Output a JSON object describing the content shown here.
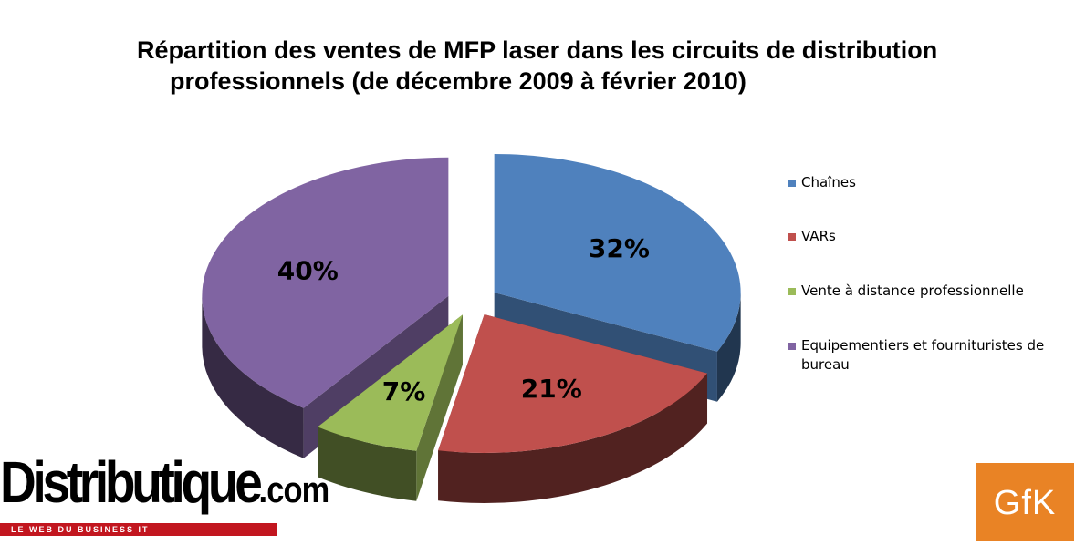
{
  "chart_data": {
    "type": "pie",
    "title_line1": "Répartition des ventes de MFP laser dans les circuits de distribution",
    "title_line2": "professionnels (de décembre 2009 à février 2010)",
    "unit": "%",
    "categories": [
      "Chaînes",
      "VARs",
      "Vente à distance professionnelle",
      "Equipementiers et fournituristes de bureau"
    ],
    "values": [
      32,
      21,
      7,
      40
    ],
    "labels": [
      "32%",
      "21%",
      "7%",
      "40%"
    ],
    "colors": [
      "#4f81bd",
      "#c0504d",
      "#9bbb59",
      "#8064a2"
    ],
    "style": "3d-exploded",
    "legend_position": "right"
  },
  "logos": {
    "left": {
      "brand": "Distributique",
      "suffix": ".com",
      "tagline": "LE WEB DU BUSINESS IT"
    },
    "right": {
      "brand": "GfK"
    }
  }
}
